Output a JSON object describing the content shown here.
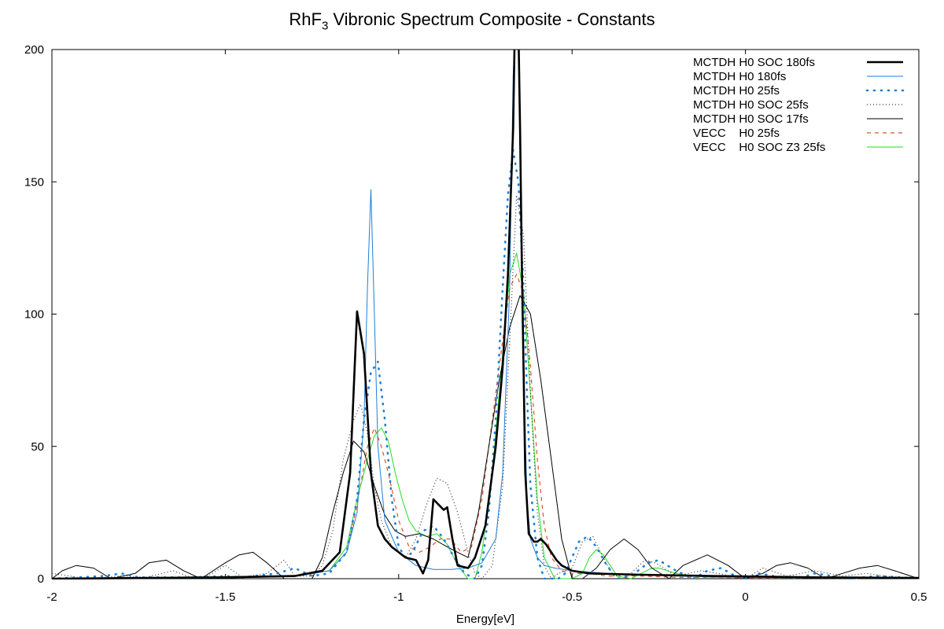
{
  "chart_data": {
    "type": "line",
    "title": {
      "base": "RhF",
      "subscript": "3",
      "rest": " Vibronic Spectrum Composite - Constants"
    },
    "xlabel": "Energy[eV]",
    "ylabel": "",
    "xlim": [
      -2,
      0.5
    ],
    "ylim": [
      0,
      200
    ],
    "xticks": [
      "-2",
      "-1.5",
      "-1",
      "-0.5",
      "0",
      "0.5"
    ],
    "yticks": [
      "0",
      "50",
      "100",
      "150",
      "200"
    ],
    "grid": false,
    "legend_position": "top-right",
    "series": [
      {
        "name": "MCTDH H0 SOC 180fs",
        "color": "#000000",
        "style": "solid-thick",
        "x": [
          -2.0,
          -1.5,
          -1.3,
          -1.22,
          -1.17,
          -1.14,
          -1.12,
          -1.1,
          -1.08,
          -1.06,
          -1.04,
          -1.02,
          -1.0,
          -0.98,
          -0.95,
          -0.93,
          -0.915,
          -0.9,
          -0.885,
          -0.87,
          -0.86,
          -0.845,
          -0.83,
          -0.8,
          -0.78,
          -0.75,
          -0.72,
          -0.7,
          -0.685,
          -0.67,
          -0.665,
          -0.66,
          -0.655,
          -0.65,
          -0.645,
          -0.64,
          -0.635,
          -0.625,
          -0.61,
          -0.6,
          -0.59,
          -0.575,
          -0.56,
          -0.545,
          -0.53,
          -0.5,
          -0.45,
          -0.3,
          -0.1,
          0.2,
          0.5
        ],
        "y": [
          0,
          0.5,
          1,
          3,
          10,
          40,
          101,
          85,
          40,
          20,
          15,
          12,
          10,
          8,
          7,
          2,
          7,
          30,
          28,
          26,
          27,
          15,
          5,
          4,
          8,
          20,
          50,
          80,
          115,
          170,
          210,
          215,
          210,
          170,
          120,
          80,
          40,
          17,
          14,
          14,
          15,
          13,
          10,
          7,
          5,
          3,
          2,
          1.5,
          1,
          0.5,
          0.3
        ]
      },
      {
        "name": "MCTDH H0 180fs",
        "color": "#1f7fd8",
        "style": "solid-thin",
        "x": [
          -2.0,
          -1.5,
          -1.3,
          -1.2,
          -1.15,
          -1.12,
          -1.1,
          -1.09,
          -1.08,
          -1.07,
          -1.06,
          -1.04,
          -1.0,
          -0.95,
          -0.9,
          -0.85,
          -0.8,
          -0.76,
          -0.72,
          -0.7,
          -0.68,
          -0.67,
          -0.66,
          -0.655,
          -0.65,
          -0.64,
          -0.63,
          -0.62,
          -0.6,
          -0.58,
          -0.55,
          -0.5,
          -0.4,
          -0.2,
          0.0,
          0.5
        ],
        "y": [
          0,
          0.3,
          0.8,
          3,
          10,
          25,
          60,
          110,
          147,
          100,
          50,
          22,
          10,
          5,
          3.5,
          3.5,
          4,
          6,
          15,
          40,
          110,
          190,
          215,
          210,
          170,
          80,
          30,
          15,
          8,
          5,
          4,
          3,
          2,
          1,
          0.6,
          0.3
        ]
      },
      {
        "name": "MCTDH H0 25fs",
        "color": "#1f7fd8",
        "style": "dotted-bold",
        "x": [
          -2.0,
          -1.85,
          -1.8,
          -1.75,
          -1.6,
          -1.5,
          -1.45,
          -1.35,
          -1.3,
          -1.25,
          -1.2,
          -1.15,
          -1.12,
          -1.1,
          -1.08,
          -1.06,
          -1.04,
          -1.02,
          -1.0,
          -0.98,
          -0.96,
          -0.93,
          -0.9,
          -0.87,
          -0.84,
          -0.81,
          -0.78,
          -0.76,
          -0.74,
          -0.72,
          -0.7,
          -0.685,
          -0.67,
          -0.655,
          -0.64,
          -0.63,
          -0.62,
          -0.6,
          -0.58,
          -0.56,
          -0.54,
          -0.52,
          -0.5,
          -0.48,
          -0.455,
          -0.43,
          -0.4,
          -0.37,
          -0.33,
          -0.28,
          -0.25,
          -0.2,
          -0.15,
          -0.11,
          -0.07,
          -0.03,
          0.0,
          0.04,
          0.08,
          0.15,
          0.2,
          0.25,
          0.3,
          0.38,
          0.45,
          0.5
        ],
        "y": [
          0,
          1,
          2,
          0.5,
          0.5,
          1,
          0.5,
          2,
          4,
          1,
          2,
          10,
          30,
          60,
          78,
          82,
          60,
          30,
          12,
          8,
          10,
          18,
          20,
          15,
          8,
          2,
          0,
          5,
          25,
          60,
          110,
          145,
          162,
          150,
          110,
          70,
          35,
          8,
          0,
          0,
          0,
          2,
          8,
          14,
          16,
          12,
          5,
          0,
          1,
          6,
          7,
          3,
          0,
          3,
          4,
          1,
          0,
          2,
          1,
          0,
          2,
          1,
          0,
          1,
          0.5,
          0
        ]
      },
      {
        "name": "MCTDH H0 SOC 25fs",
        "color": "#333333",
        "style": "dotted-fine",
        "x": [
          -2.0,
          -1.95,
          -1.9,
          -1.8,
          -1.73,
          -1.65,
          -1.6,
          -1.55,
          -1.5,
          -1.45,
          -1.38,
          -1.33,
          -1.3,
          -1.25,
          -1.22,
          -1.19,
          -1.16,
          -1.13,
          -1.11,
          -1.09,
          -1.07,
          -1.05,
          -1.02,
          -1.0,
          -0.98,
          -0.95,
          -0.92,
          -0.89,
          -0.86,
          -0.83,
          -0.8,
          -0.78,
          -0.76,
          -0.73,
          -0.7,
          -0.68,
          -0.66,
          -0.64,
          -0.62,
          -0.6,
          -0.58,
          -0.56,
          -0.54,
          -0.5,
          -0.47,
          -0.44,
          -0.41,
          -0.38,
          -0.33,
          -0.29,
          -0.26,
          -0.2,
          -0.13,
          -0.08,
          0.0,
          0.05,
          0.12,
          0.2,
          0.28,
          0.35,
          0.4,
          0.5
        ],
        "y": [
          2,
          1,
          0,
          1,
          0.5,
          3,
          0.5,
          1,
          5,
          0.5,
          2,
          7,
          1,
          1,
          5,
          18,
          45,
          60,
          66,
          55,
          35,
          22,
          12,
          10,
          8,
          15,
          28,
          38,
          36,
          25,
          10,
          2,
          0,
          5,
          35,
          90,
          145,
          130,
          70,
          25,
          5,
          0,
          2,
          4,
          14,
          16,
          8,
          1,
          2,
          7,
          6,
          1,
          3,
          2,
          0,
          4,
          1,
          3,
          1,
          2,
          1,
          0
        ]
      },
      {
        "name": "MCTDH H0 SOC 17fs",
        "color": "#000000",
        "style": "solid-thin",
        "x": [
          -2.0,
          -1.97,
          -1.93,
          -1.88,
          -1.83,
          -1.76,
          -1.72,
          -1.67,
          -1.62,
          -1.57,
          -1.5,
          -1.46,
          -1.42,
          -1.38,
          -1.33,
          -1.28,
          -1.25,
          -1.22,
          -1.19,
          -1.16,
          -1.13,
          -1.1,
          -1.07,
          -1.04,
          -1.01,
          -0.98,
          -0.94,
          -0.9,
          -0.86,
          -0.83,
          -0.8,
          -0.77,
          -0.74,
          -0.71,
          -0.68,
          -0.65,
          -0.62,
          -0.59,
          -0.56,
          -0.53,
          -0.5,
          -0.47,
          -0.43,
          -0.39,
          -0.35,
          -0.31,
          -0.27,
          -0.22,
          -0.18,
          -0.11,
          -0.05,
          0.0,
          0.05,
          0.09,
          0.13,
          0.18,
          0.23,
          0.28,
          0.33,
          0.38,
          0.43,
          0.5
        ],
        "y": [
          0,
          3,
          5,
          4,
          0,
          2,
          6,
          7,
          3,
          0,
          6,
          9,
          10,
          6,
          0,
          0,
          0,
          8,
          25,
          40,
          52,
          48,
          35,
          24,
          18,
          16,
          17,
          15,
          12,
          10,
          8,
          25,
          50,
          75,
          95,
          107,
          100,
          75,
          45,
          15,
          0,
          0,
          4,
          11,
          15,
          11,
          4,
          0,
          5,
          9,
          5,
          0,
          2,
          5,
          6,
          4,
          0,
          2,
          4,
          5,
          3,
          0
        ]
      },
      {
        "name": "VECC    H0 25fs",
        "color": "#e0502a",
        "style": "dashed",
        "x": [
          -2.0,
          -1.5,
          -1.3,
          -1.2,
          -1.15,
          -1.12,
          -1.09,
          -1.07,
          -1.05,
          -1.03,
          -1.0,
          -0.97,
          -0.94,
          -0.91,
          -0.88,
          -0.85,
          -0.82,
          -0.79,
          -0.76,
          -0.73,
          -0.7,
          -0.68,
          -0.66,
          -0.64,
          -0.62,
          -0.6,
          -0.58,
          -0.56,
          -0.53,
          -0.5,
          -0.45,
          -0.4,
          -0.3,
          -0.2,
          -0.1,
          0.0,
          0.2,
          0.5
        ],
        "y": [
          0,
          0.5,
          1,
          3,
          10,
          28,
          50,
          57,
          50,
          40,
          22,
          12,
          10,
          12,
          15,
          15,
          10,
          12,
          30,
          60,
          90,
          110,
          115,
          108,
          80,
          45,
          20,
          8,
          3,
          2,
          2,
          1,
          1,
          0.5,
          0.5,
          0.3,
          0.3,
          0.2
        ]
      },
      {
        "name": "VECC    H0 SOC Z3 25fs",
        "color": "#22dd22",
        "style": "solid-thin",
        "x": [
          -2.0,
          -1.5,
          -1.3,
          -1.2,
          -1.15,
          -1.12,
          -1.09,
          -1.07,
          -1.05,
          -1.03,
          -1.01,
          -0.99,
          -0.97,
          -0.95,
          -0.92,
          -0.89,
          -0.86,
          -0.83,
          -0.8,
          -0.78,
          -0.76,
          -0.73,
          -0.7,
          -0.68,
          -0.66,
          -0.64,
          -0.62,
          -0.6,
          -0.58,
          -0.55,
          -0.5,
          -0.47,
          -0.45,
          -0.43,
          -0.41,
          -0.39,
          -0.37,
          -0.33,
          -0.3,
          -0.27,
          -0.25,
          -0.2,
          -0.15,
          -0.1,
          0.0,
          0.2,
          0.5
        ],
        "y": [
          0,
          0.8,
          1,
          3,
          12,
          30,
          45,
          54,
          57,
          52,
          40,
          30,
          22,
          18,
          16,
          17,
          13,
          5,
          0,
          0,
          10,
          40,
          85,
          115,
          123,
          108,
          70,
          30,
          8,
          0,
          0,
          2,
          8,
          11,
          9,
          5,
          1,
          0,
          2,
          4,
          4,
          2,
          1,
          0.5,
          0.5,
          0.3,
          0.2
        ]
      }
    ]
  }
}
